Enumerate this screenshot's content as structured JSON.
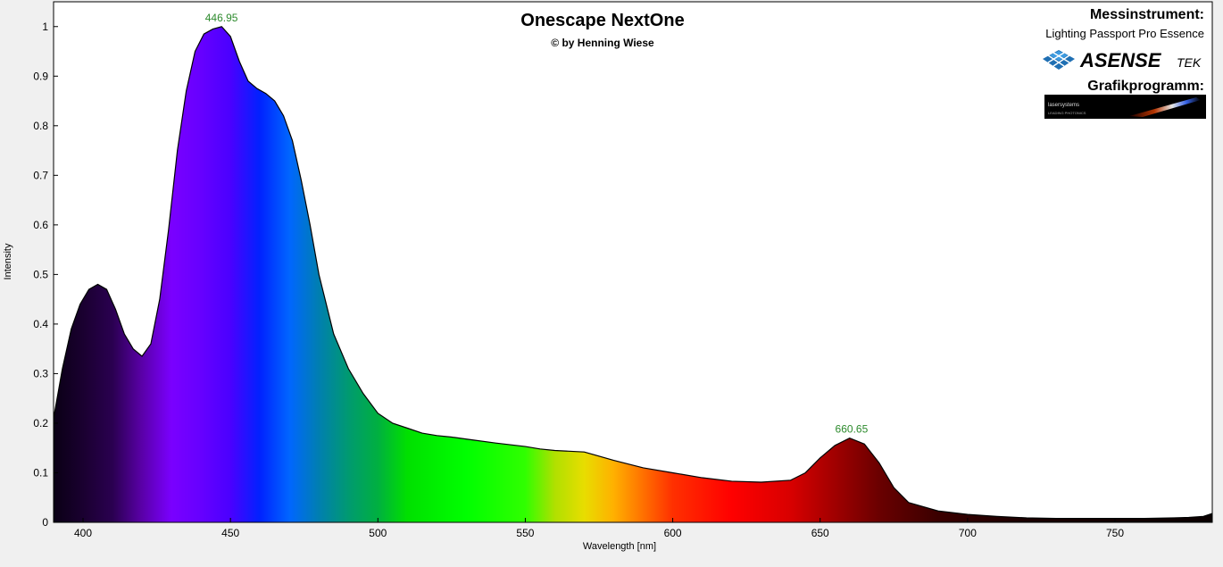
{
  "header": {
    "title": "Onescape NextOne",
    "subtitle": "© by Henning Wiese",
    "instrument_heading": "Messinstrument:",
    "instrument_name": "Lighting Passport Pro Essence",
    "instrument_logo_text": "ASENSE",
    "instrument_logo_suffix": "TEK",
    "software_heading": "Grafikprogramm:",
    "software_logo_text": "lasersystems",
    "software_logo_tagline": "LEADING PHOTONICS"
  },
  "chart_data": {
    "type": "area",
    "title": "Onescape NextOne",
    "subtitle": "© by Henning Wiese",
    "xlabel": "Wavelength [nm]",
    "ylabel": "Intensity",
    "xlim": [
      390,
      783
    ],
    "ylim": [
      0,
      1.05
    ],
    "xticks": [
      400,
      450,
      500,
      550,
      600,
      650,
      700,
      750
    ],
    "yticks": [
      0,
      0.1,
      0.2,
      0.3,
      0.4,
      0.5,
      0.6,
      0.7,
      0.8,
      0.9,
      1
    ],
    "grid": false,
    "fill": "spectral-colors",
    "annotations": [
      {
        "x": 446.95,
        "y": 1.0,
        "text": "446.95",
        "color": "#2e8b2e"
      },
      {
        "x": 660.65,
        "y": 0.17,
        "text": "660.65",
        "color": "#2e8b2e"
      }
    ],
    "series": [
      {
        "x": [
          390,
          393,
          396,
          399,
          402,
          405,
          408,
          411,
          414,
          417,
          420,
          423,
          426,
          429,
          432,
          435,
          438,
          441,
          444,
          447,
          450,
          453,
          456,
          459,
          462,
          465,
          468,
          471,
          474,
          477,
          480,
          485,
          490,
          495,
          500,
          505,
          510,
          515,
          520,
          525,
          530,
          540,
          550,
          555,
          560,
          570,
          580,
          590,
          600,
          610,
          620,
          630,
          640,
          645,
          650,
          655,
          660,
          665,
          670,
          675,
          680,
          690,
          700,
          710,
          720,
          730,
          740,
          750,
          760,
          770,
          775,
          780,
          783
        ],
        "y": [
          0.21,
          0.31,
          0.39,
          0.44,
          0.47,
          0.48,
          0.47,
          0.43,
          0.38,
          0.35,
          0.335,
          0.36,
          0.45,
          0.59,
          0.75,
          0.87,
          0.95,
          0.985,
          0.995,
          1.0,
          0.98,
          0.93,
          0.89,
          0.875,
          0.865,
          0.85,
          0.82,
          0.77,
          0.69,
          0.6,
          0.5,
          0.38,
          0.31,
          0.26,
          0.22,
          0.2,
          0.19,
          0.18,
          0.175,
          0.172,
          0.168,
          0.16,
          0.153,
          0.148,
          0.145,
          0.142,
          0.125,
          0.11,
          0.1,
          0.09,
          0.083,
          0.081,
          0.085,
          0.1,
          0.13,
          0.155,
          0.17,
          0.158,
          0.12,
          0.07,
          0.04,
          0.023,
          0.016,
          0.012,
          0.009,
          0.008,
          0.008,
          0.008,
          0.008,
          0.009,
          0.01,
          0.012,
          0.018
        ]
      }
    ]
  }
}
